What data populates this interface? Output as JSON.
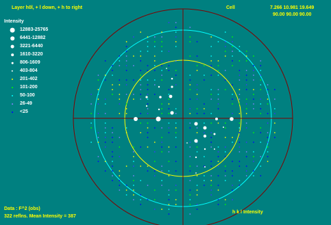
{
  "header": {
    "layer_text": "Layer h0l, + l down, + h to right",
    "cell_label": "Cell",
    "cell_lengths": "7.266 10.981 19.649",
    "cell_angles": "90.00  90.00  90.00"
  },
  "legend": {
    "title": "Intensity",
    "items": [
      {
        "label": "12883-25765",
        "color": "#ffffff",
        "icon": "large-dot-icon"
      },
      {
        "label": "6441-12882",
        "color": "#ffffff",
        "icon": "dot-icon"
      },
      {
        "label": "3221-6440",
        "color": "#ffffff",
        "icon": "dot-icon"
      },
      {
        "label": "1610-3220",
        "color": "#ffffff",
        "icon": "small-dot-icon"
      },
      {
        "label": "806-1609",
        "color": "#ffffff",
        "icon": "tiny-dot-icon"
      },
      {
        "label": "403-804",
        "color": "#ffffff",
        "icon": "tiny-dot-icon"
      },
      {
        "label": "201-402",
        "color": "#ffff00",
        "icon": "tiny-dot-icon"
      },
      {
        "label": "101-200",
        "color": "#00ff00",
        "icon": "tiny-dot-icon"
      },
      {
        "label": "50-100",
        "color": "#00ffff",
        "icon": "tiny-dot-icon"
      },
      {
        "label": "26-49",
        "color": "#8080ff",
        "icon": "tiny-dot-icon"
      },
      {
        "label": "<25",
        "color": "#0000ff",
        "icon": "tiny-dot-icon"
      }
    ]
  },
  "footer": {
    "data_label": "Data : F^2 (obs)",
    "reflections": "322  reflns. Mean Intensity =  387",
    "columns": "h   k   l   Intensity"
  },
  "colors": {
    "background": "#008080",
    "outer_ring": "#800000",
    "middle_ring": "#00ffff",
    "inner_ring": "#ffff00",
    "axes": "#800000",
    "label_yellow": "#ffff00"
  }
}
